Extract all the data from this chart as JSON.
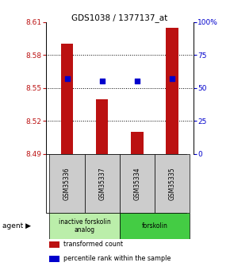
{
  "title": "GDS1038 / 1377137_at",
  "samples": [
    "GSM35336",
    "GSM35337",
    "GSM35334",
    "GSM35335"
  ],
  "bar_values": [
    8.59,
    8.54,
    8.51,
    8.605
  ],
  "bar_base": 8.49,
  "percentile_values": [
    57,
    55,
    55,
    57
  ],
  "percentile_scale_min": 0,
  "percentile_scale_max": 100,
  "ylim": [
    8.49,
    8.61
  ],
  "yticks": [
    8.49,
    8.52,
    8.55,
    8.58,
    8.61
  ],
  "bar_color": "#bb1111",
  "percentile_color": "#0000cc",
  "background_color": "#ffffff",
  "plot_bg": "#ffffff",
  "agent_groups": [
    {
      "label": "inactive forskolin\nanalog",
      "color": "#bbeeaa",
      "span": [
        0,
        2
      ]
    },
    {
      "label": "forskolin",
      "color": "#44cc44",
      "span": [
        2,
        4
      ]
    }
  ],
  "legend_labels": [
    "transformed count",
    "percentile rank within the sample"
  ],
  "legend_colors": [
    "#bb1111",
    "#0000cc"
  ],
  "agent_label": "agent",
  "bar_width": 0.35
}
